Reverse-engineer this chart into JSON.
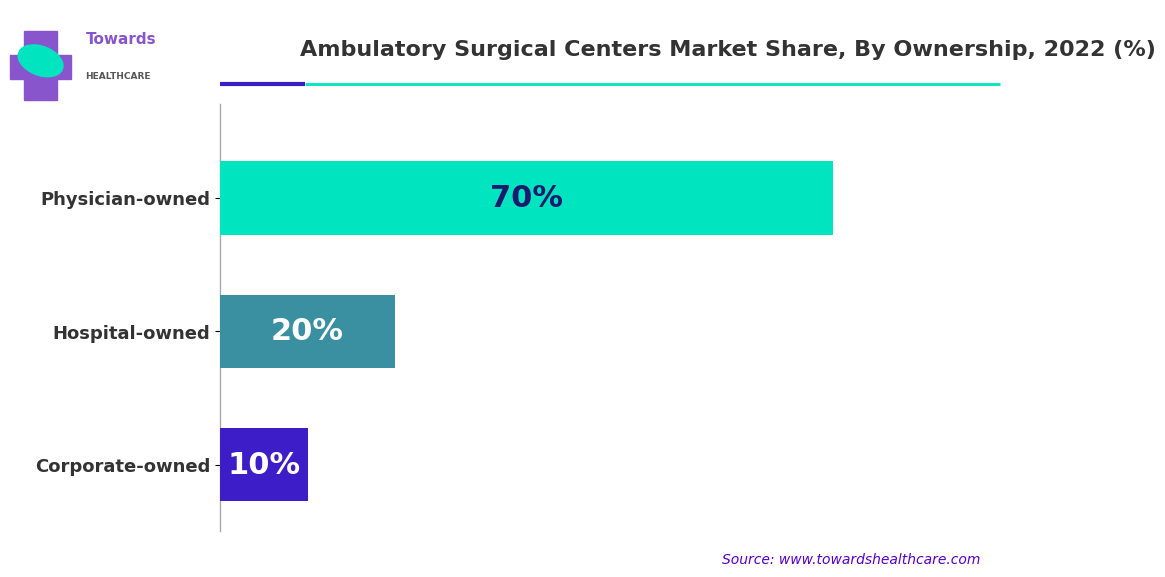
{
  "title": "Ambulatory Surgical Centers Market Share, By Ownership, 2022 (%)",
  "categories": [
    "Physician-owned",
    "Hospital-owned",
    "Corporate-owned"
  ],
  "values": [
    70,
    20,
    10
  ],
  "bar_colors": [
    "#00E5C0",
    "#3A8FA0",
    "#3D1DC8"
  ],
  "label_colors": [
    "#1a1a6e",
    "#ffffff",
    "#ffffff"
  ],
  "label_texts": [
    "70%",
    "20%",
    "10%"
  ],
  "source_text": "Source: www.towardshealthcare.com",
  "source_color": "#5500cc",
  "background_color": "#ffffff",
  "title_color": "#333333",
  "title_fontsize": 16,
  "label_fontsize": 22,
  "bar_height": 0.55,
  "xlim": [
    0,
    80
  ],
  "accent_color_dark": "#3D1DC8",
  "accent_color_teal": "#00E5C0",
  "cross_color": "#8855cc",
  "leaf_color": "#00E5C0",
  "towards_color": "#8855cc",
  "healthcare_color": "#555555"
}
